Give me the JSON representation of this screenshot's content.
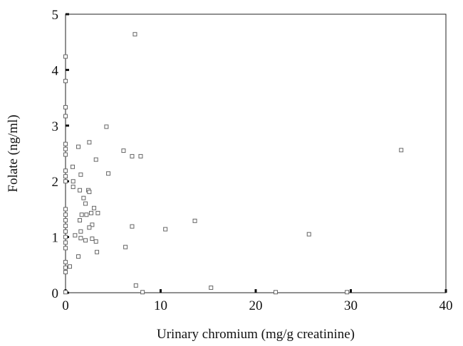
{
  "chart_data": {
    "type": "scatter",
    "xlabel": "Urinary chromium (mg/g creatinine)",
    "ylabel": "Folate (ng/ml)",
    "x": [
      7.3,
      0,
      0,
      0,
      0,
      0,
      0,
      0,
      4.3,
      1.35,
      2.5,
      6.1,
      7.0,
      7.9,
      3.2,
      4.5,
      35.3,
      0.75,
      0,
      0,
      0,
      0.8,
      0.8,
      1.6,
      1.5,
      2.4,
      2.5,
      1.9,
      2.1,
      3.0,
      2.7,
      3.4,
      1.7,
      2.2,
      1.5,
      2.8,
      2.5,
      13.6,
      10.5,
      7.0,
      1.6,
      1.0,
      1.6,
      2.1,
      2.8,
      3.2,
      25.6,
      6.3,
      3.3,
      1.35,
      0,
      0,
      0,
      0,
      0,
      0,
      0,
      0,
      0,
      0,
      0.45,
      0,
      7.4,
      8.1,
      15.3,
      22.1,
      29.6,
      0
    ],
    "values": [
      4.64,
      4.24,
      3.8,
      3.33,
      3.17,
      2.67,
      2.58,
      2.48,
      2.98,
      2.62,
      2.7,
      2.55,
      2.45,
      2.45,
      2.39,
      2.14,
      2.56,
      2.26,
      2.19,
      2.09,
      2.0,
      2.0,
      1.9,
      2.12,
      1.84,
      1.84,
      1.81,
      1.7,
      1.6,
      1.52,
      1.43,
      1.43,
      1.4,
      1.4,
      1.3,
      1.22,
      1.17,
      1.29,
      1.14,
      1.19,
      1.1,
      1.03,
      0.98,
      0.94,
      0.97,
      0.92,
      1.05,
      0.82,
      0.73,
      0.65,
      1.5,
      1.4,
      1.3,
      1.2,
      1.1,
      1.0,
      0.9,
      0.8,
      0.55,
      0.45,
      0.47,
      0.37,
      0.13,
      0.01,
      0.09,
      0.01,
      0.01,
      0.01
    ],
    "marker_color": "#666666",
    "xlim": [
      0,
      40
    ],
    "xticks": [
      0,
      10,
      20,
      30,
      40
    ],
    "ylim": [
      0,
      5
    ],
    "yticks": [
      0,
      1,
      2,
      3,
      4,
      5
    ]
  }
}
